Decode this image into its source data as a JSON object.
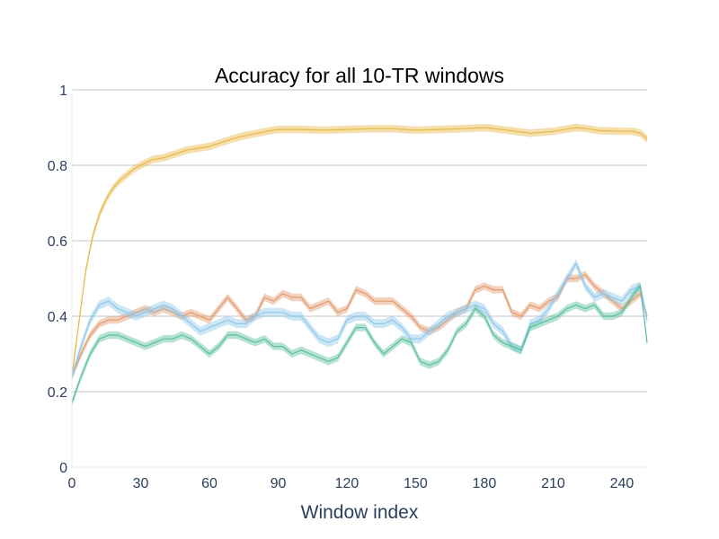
{
  "chart_data": {
    "type": "line",
    "title": "Accuracy for all 10-TR windows",
    "xlabel": "Window index",
    "ylabel": "",
    "xlim": [
      0,
      251
    ],
    "ylim": [
      0,
      1
    ],
    "xticks": [
      0,
      30,
      60,
      90,
      120,
      150,
      180,
      210,
      240
    ],
    "xtick_labels": [
      "0",
      "30",
      "60",
      "90",
      "120",
      "150",
      "180",
      "210",
      "240"
    ],
    "yticks": [
      0,
      0.2,
      0.4,
      0.6,
      0.8,
      1
    ],
    "ytick_labels": [
      "0",
      "0.2",
      "0.4",
      "0.6",
      "0.8",
      "1"
    ],
    "grid": true,
    "legend": "none",
    "series": [
      {
        "color": "#e8b849",
        "band": 0.01,
        "x": [
          0,
          3,
          6,
          9,
          12,
          15,
          18,
          21,
          24,
          27,
          30,
          35,
          40,
          45,
          50,
          55,
          60,
          65,
          70,
          75,
          80,
          85,
          90,
          100,
          110,
          120,
          130,
          140,
          150,
          160,
          170,
          180,
          190,
          200,
          210,
          220,
          225,
          230,
          240,
          245,
          248,
          251
        ],
        "y": [
          0.24,
          0.38,
          0.52,
          0.61,
          0.67,
          0.71,
          0.74,
          0.76,
          0.775,
          0.79,
          0.8,
          0.815,
          0.82,
          0.83,
          0.84,
          0.845,
          0.85,
          0.86,
          0.87,
          0.878,
          0.884,
          0.89,
          0.895,
          0.895,
          0.893,
          0.895,
          0.897,
          0.897,
          0.893,
          0.895,
          0.897,
          0.9,
          0.893,
          0.885,
          0.89,
          0.9,
          0.897,
          0.892,
          0.89,
          0.89,
          0.885,
          0.87
        ]
      },
      {
        "color": "#e39a6d",
        "band": 0.01,
        "x": [
          0,
          4,
          8,
          12,
          16,
          20,
          24,
          28,
          32,
          36,
          40,
          44,
          48,
          52,
          56,
          60,
          64,
          68,
          72,
          76,
          80,
          84,
          88,
          92,
          96,
          100,
          104,
          108,
          112,
          116,
          120,
          124,
          128,
          132,
          136,
          140,
          144,
          148,
          152,
          156,
          160,
          164,
          168,
          172,
          176,
          180,
          184,
          188,
          192,
          196,
          200,
          204,
          208,
          212,
          216,
          220,
          224,
          228,
          232,
          236,
          240,
          244,
          248,
          251
        ],
        "y": [
          0.24,
          0.3,
          0.35,
          0.38,
          0.39,
          0.39,
          0.4,
          0.41,
          0.42,
          0.41,
          0.42,
          0.41,
          0.4,
          0.41,
          0.4,
          0.39,
          0.42,
          0.45,
          0.42,
          0.39,
          0.4,
          0.45,
          0.44,
          0.46,
          0.45,
          0.45,
          0.42,
          0.43,
          0.44,
          0.41,
          0.42,
          0.47,
          0.46,
          0.44,
          0.44,
          0.44,
          0.42,
          0.4,
          0.37,
          0.36,
          0.37,
          0.39,
          0.41,
          0.42,
          0.47,
          0.48,
          0.47,
          0.47,
          0.41,
          0.4,
          0.43,
          0.42,
          0.44,
          0.45,
          0.5,
          0.5,
          0.51,
          0.48,
          0.46,
          0.44,
          0.42,
          0.44,
          0.46,
          0.4
        ]
      },
      {
        "color": "#8ec7ec",
        "band": 0.012,
        "x": [
          0,
          4,
          8,
          12,
          16,
          20,
          24,
          28,
          32,
          36,
          40,
          44,
          48,
          52,
          56,
          60,
          64,
          68,
          72,
          76,
          80,
          84,
          88,
          92,
          96,
          100,
          104,
          108,
          112,
          116,
          120,
          124,
          128,
          132,
          136,
          140,
          144,
          148,
          152,
          156,
          160,
          164,
          168,
          172,
          176,
          180,
          184,
          188,
          192,
          196,
          200,
          204,
          208,
          212,
          216,
          220,
          224,
          228,
          232,
          236,
          240,
          244,
          248,
          251
        ],
        "y": [
          0.24,
          0.32,
          0.39,
          0.43,
          0.44,
          0.42,
          0.41,
          0.4,
          0.41,
          0.42,
          0.43,
          0.42,
          0.4,
          0.38,
          0.36,
          0.37,
          0.38,
          0.39,
          0.38,
          0.38,
          0.4,
          0.41,
          0.41,
          0.41,
          0.4,
          0.4,
          0.37,
          0.34,
          0.33,
          0.34,
          0.39,
          0.4,
          0.4,
          0.38,
          0.38,
          0.39,
          0.37,
          0.34,
          0.34,
          0.36,
          0.38,
          0.4,
          0.41,
          0.42,
          0.43,
          0.42,
          0.38,
          0.36,
          0.32,
          0.31,
          0.38,
          0.39,
          0.42,
          0.46,
          0.5,
          0.54,
          0.48,
          0.45,
          0.46,
          0.45,
          0.44,
          0.47,
          0.48,
          0.39
        ]
      },
      {
        "color": "#5bbf9f",
        "band": 0.01,
        "x": [
          0,
          4,
          8,
          12,
          16,
          20,
          24,
          28,
          32,
          36,
          40,
          44,
          48,
          52,
          56,
          60,
          64,
          68,
          72,
          76,
          80,
          84,
          88,
          92,
          96,
          100,
          104,
          108,
          112,
          116,
          120,
          124,
          128,
          132,
          136,
          140,
          144,
          148,
          152,
          156,
          160,
          164,
          168,
          172,
          176,
          180,
          184,
          188,
          192,
          196,
          200,
          204,
          208,
          212,
          216,
          220,
          224,
          228,
          232,
          236,
          240,
          244,
          248,
          251
        ],
        "y": [
          0.17,
          0.24,
          0.3,
          0.34,
          0.35,
          0.35,
          0.34,
          0.33,
          0.32,
          0.33,
          0.34,
          0.34,
          0.35,
          0.34,
          0.32,
          0.3,
          0.32,
          0.35,
          0.35,
          0.34,
          0.33,
          0.34,
          0.32,
          0.32,
          0.3,
          0.31,
          0.3,
          0.29,
          0.28,
          0.29,
          0.33,
          0.37,
          0.37,
          0.33,
          0.3,
          0.32,
          0.34,
          0.33,
          0.28,
          0.27,
          0.28,
          0.31,
          0.36,
          0.38,
          0.42,
          0.4,
          0.35,
          0.33,
          0.32,
          0.31,
          0.37,
          0.38,
          0.39,
          0.4,
          0.42,
          0.43,
          0.42,
          0.43,
          0.4,
          0.4,
          0.41,
          0.45,
          0.48,
          0.33
        ]
      }
    ]
  }
}
